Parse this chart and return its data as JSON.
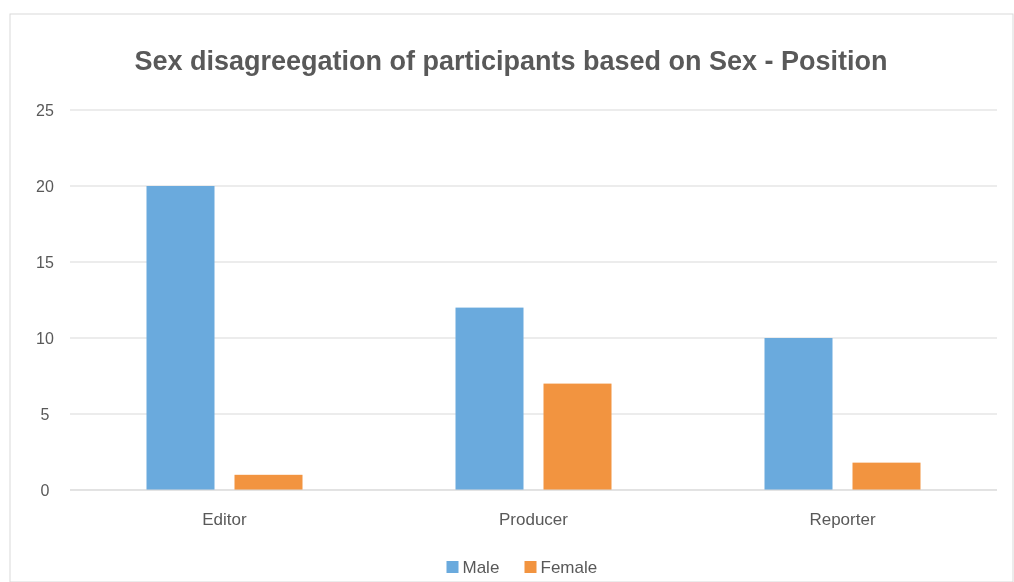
{
  "chart_data": {
    "type": "bar",
    "title": "Sex disagreegation of participants based on Sex - Position",
    "categories": [
      "Editor",
      "Producer",
      "Reporter"
    ],
    "series": [
      {
        "name": "Male",
        "color": "#6aaadd",
        "values": [
          20,
          12,
          10
        ]
      },
      {
        "name": "Female",
        "color": "#f29440",
        "values": [
          1,
          7,
          1.8
        ]
      }
    ],
    "ylim": [
      0,
      25
    ],
    "yticks": [
      0,
      5,
      10,
      15,
      20,
      25
    ],
    "grid": "y",
    "legend": "bottom"
  }
}
